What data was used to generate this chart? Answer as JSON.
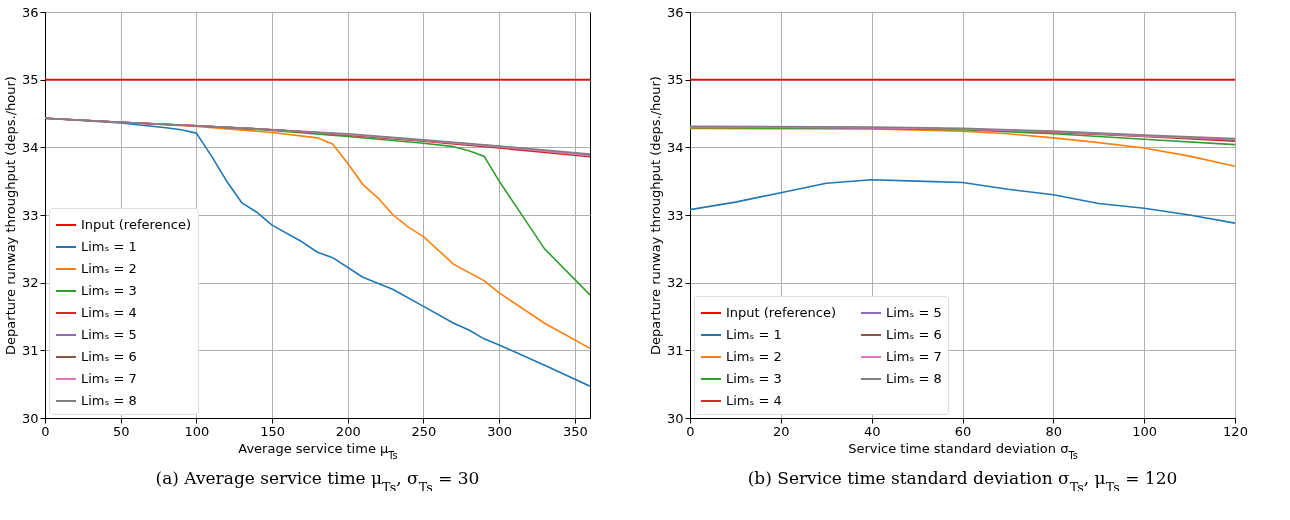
{
  "chart_data": [
    {
      "type": "line",
      "xlabel": "Average service time  μ$_{Ts}$",
      "ylabel": "Departure runway throughput (deps./hour)",
      "annotations": [
        "(a) Average service time μ$_{Ts}$, σ$_{Ts}$ = 30"
      ],
      "xlim": [
        0,
        360
      ],
      "xticks": [
        0,
        50,
        100,
        150,
        200,
        250,
        300,
        350
      ],
      "ylim": [
        30,
        36
      ],
      "yticks": [
        30,
        31,
        32,
        33,
        34,
        35,
        36
      ],
      "grid": true,
      "legend": "bottom left",
      "series": [
        {
          "name": "Input (reference)",
          "color": "#ff0000",
          "x": [
            0,
            360
          ],
          "values": [
            35,
            35
          ]
        },
        {
          "name": "Limₛ = 1",
          "color": "#1f77b4",
          "x": [
            0,
            50,
            80,
            90,
            100,
            110,
            120,
            130,
            140,
            150,
            170,
            180,
            190,
            210,
            230,
            250,
            270,
            280,
            290,
            300,
            330,
            360
          ],
          "values": [
            34.43,
            34.36,
            34.29,
            34.26,
            34.21,
            33.87,
            33.5,
            33.18,
            33.04,
            32.85,
            32.6,
            32.45,
            32.37,
            32.08,
            31.9,
            31.65,
            31.4,
            31.3,
            31.17,
            31.08,
            30.78,
            30.47
          ]
        },
        {
          "name": "Limₛ = 2",
          "color": "#ff7f0e",
          "x": [
            0,
            100,
            150,
            180,
            190,
            200,
            210,
            220,
            230,
            240,
            250,
            270,
            290,
            300,
            330,
            360
          ],
          "values": [
            34.43,
            34.31,
            34.22,
            34.14,
            34.05,
            33.76,
            33.45,
            33.25,
            33.0,
            32.82,
            32.68,
            32.27,
            32.03,
            31.85,
            31.4,
            31.03
          ]
        },
        {
          "name": "Limₛ = 3",
          "color": "#2ca02c",
          "x": [
            100,
            150,
            200,
            250,
            270,
            280,
            290,
            300,
            330,
            360
          ],
          "values": [
            34.32,
            34.25,
            34.16,
            34.06,
            34.01,
            33.95,
            33.87,
            33.5,
            32.5,
            31.82
          ]
        },
        {
          "name": "Limₛ = 4",
          "color": "#d62728",
          "x": [
            0,
            50,
            100,
            150,
            200,
            250,
            300,
            360
          ],
          "values": [
            34.43,
            34.37,
            34.32,
            34.26,
            34.18,
            34.09,
            33.99,
            33.86
          ]
        },
        {
          "name": "Limₛ = 5",
          "color": "#9467bd",
          "x": [
            0,
            50,
            100,
            150,
            200,
            250,
            300,
            360
          ],
          "values": [
            34.43,
            34.37,
            34.32,
            34.26,
            34.19,
            34.1,
            34.01,
            33.88
          ]
        },
        {
          "name": "Limₛ = 6",
          "color": "#8c564b",
          "x": [
            0,
            50,
            100,
            150,
            200,
            250,
            300,
            360
          ],
          "values": [
            34.43,
            34.37,
            34.32,
            34.26,
            34.19,
            34.1,
            34.01,
            33.89
          ]
        },
        {
          "name": "Limₛ = 7",
          "color": "#e377c2",
          "x": [
            0,
            50,
            100,
            150,
            200,
            250,
            300,
            360
          ],
          "values": [
            34.43,
            34.37,
            34.32,
            34.26,
            34.19,
            34.1,
            34.01,
            33.88
          ]
        },
        {
          "name": "Limₛ = 8",
          "color": "#7f7f7f",
          "x": [
            0,
            50,
            100,
            150,
            200,
            250,
            300,
            360
          ],
          "values": [
            34.43,
            34.37,
            34.32,
            34.26,
            34.2,
            34.11,
            34.02,
            33.9
          ]
        }
      ]
    },
    {
      "type": "line",
      "xlabel": "Service time standard deviation  σ$_{Ts}$",
      "ylabel": "Departure runway throughput (deps./hour)",
      "annotations": [
        "(b) Service time standard deviation σ$_{Ts}$, μ$_{Ts}$ = 120"
      ],
      "xlim": [
        0,
        120
      ],
      "xticks": [
        0,
        20,
        40,
        60,
        80,
        100,
        120
      ],
      "ylim": [
        30,
        36
      ],
      "yticks": [
        30,
        31,
        32,
        33,
        34,
        35,
        36
      ],
      "grid": true,
      "legend": "bottom left",
      "series": [
        {
          "name": "Input (reference)",
          "color": "#ff0000",
          "x": [
            0,
            120
          ],
          "values": [
            35,
            35
          ]
        },
        {
          "name": "Limₛ = 1",
          "color": "#1f77b4",
          "x": [
            0,
            10,
            20,
            30,
            40,
            50,
            60,
            70,
            80,
            90,
            100,
            110,
            120
          ],
          "values": [
            33.08,
            33.19,
            33.33,
            33.47,
            33.52,
            33.5,
            33.48,
            33.38,
            33.3,
            33.17,
            33.1,
            33.0,
            32.88
          ]
        },
        {
          "name": "Limₛ = 2",
          "color": "#ff7f0e",
          "x": [
            0,
            40,
            60,
            70,
            80,
            90,
            100,
            110,
            120
          ],
          "values": [
            34.28,
            34.27,
            34.24,
            34.2,
            34.14,
            34.07,
            33.99,
            33.87,
            33.72
          ]
        },
        {
          "name": "Limₛ = 3",
          "color": "#2ca02c",
          "x": [
            0,
            40,
            60,
            80,
            100,
            120
          ],
          "values": [
            34.29,
            34.28,
            34.26,
            34.2,
            34.12,
            34.04
          ]
        },
        {
          "name": "Limₛ = 4",
          "color": "#d62728",
          "x": [
            60,
            80,
            100,
            120
          ],
          "values": [
            34.27,
            34.22,
            34.16,
            34.09
          ]
        },
        {
          "name": "Limₛ = 5",
          "color": "#9467bd",
          "x": [
            0,
            40,
            60,
            80,
            100,
            120
          ],
          "values": [
            34.3,
            34.29,
            34.27,
            34.23,
            34.17,
            34.11
          ]
        },
        {
          "name": "Limₛ = 6",
          "color": "#8c564b",
          "x": [
            0,
            40,
            60,
            80,
            100,
            120
          ],
          "values": [
            34.3,
            34.29,
            34.27,
            34.23,
            34.17,
            34.11
          ]
        },
        {
          "name": "Limₛ = 7",
          "color": "#e377c2",
          "x": [
            0,
            40,
            60,
            80,
            100,
            120
          ],
          "values": [
            34.3,
            34.29,
            34.27,
            34.23,
            34.17,
            34.12
          ]
        },
        {
          "name": "Limₛ = 8",
          "color": "#7f7f7f",
          "x": [
            0,
            40,
            60,
            80,
            100,
            120
          ],
          "values": [
            34.31,
            34.3,
            34.28,
            34.24,
            34.18,
            34.13
          ]
        }
      ]
    }
  ]
}
